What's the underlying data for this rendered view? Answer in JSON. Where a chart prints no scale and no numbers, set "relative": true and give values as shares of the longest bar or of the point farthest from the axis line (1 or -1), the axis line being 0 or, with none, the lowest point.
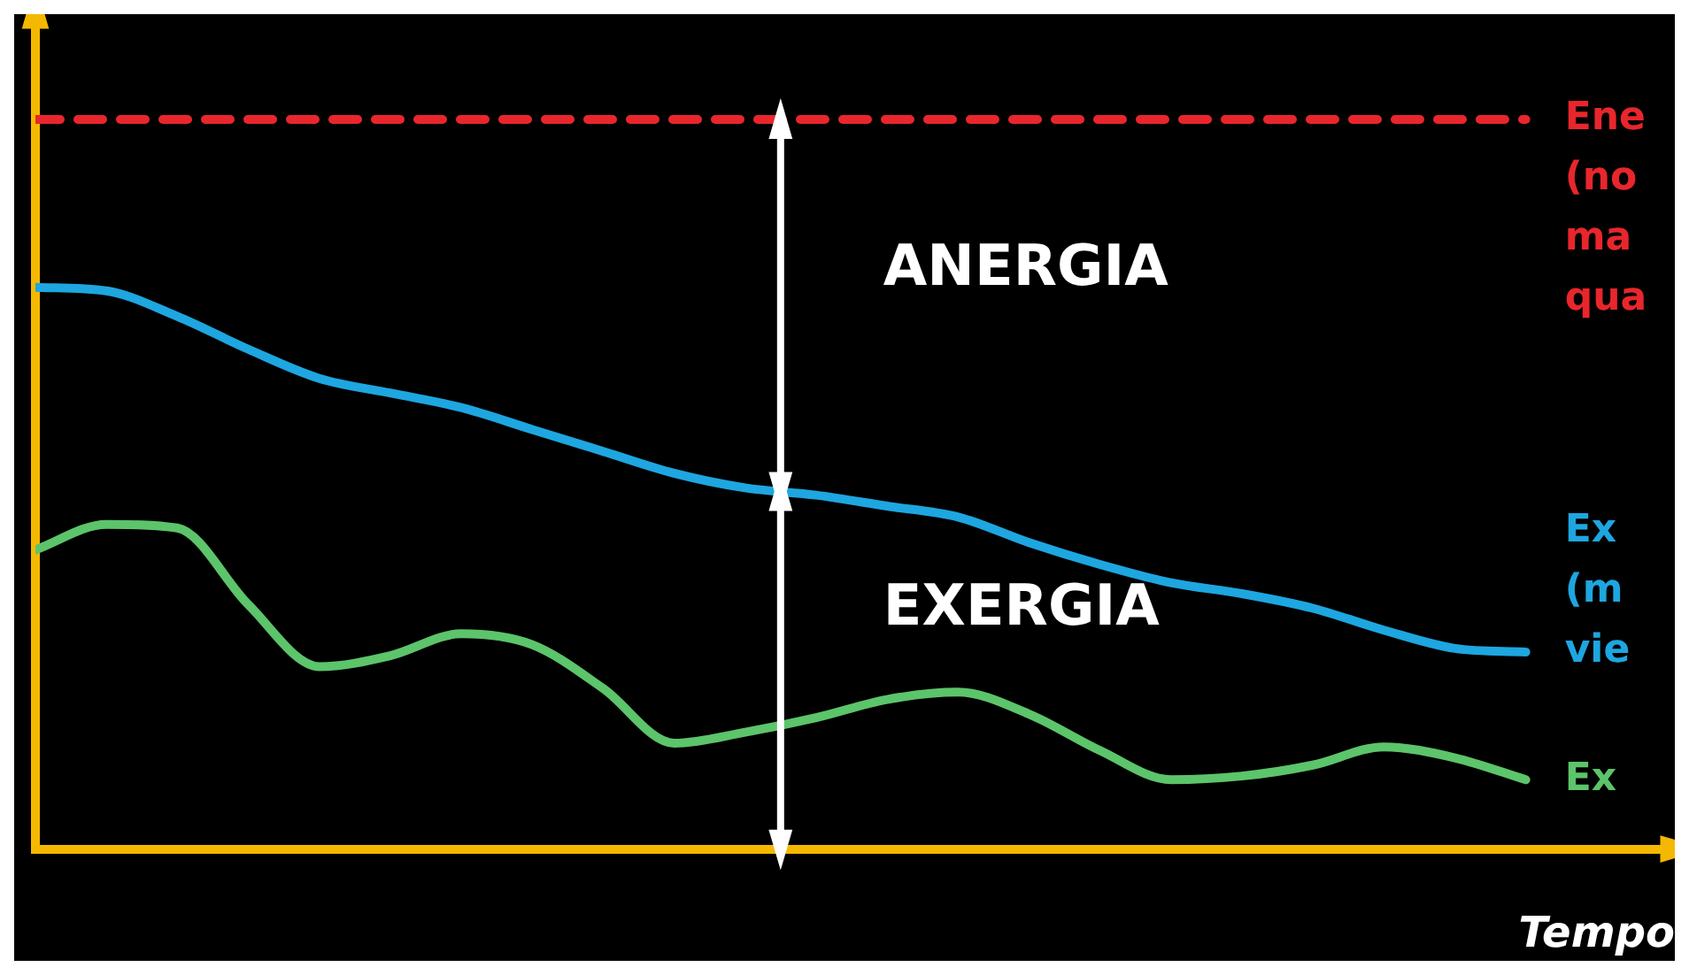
{
  "chart_data": {
    "type": "line",
    "relative": true,
    "xlabel": "Tempo",
    "categories": [
      null,
      null,
      null,
      null,
      null,
      null,
      null,
      null,
      null,
      null,
      null,
      null,
      null,
      null,
      null,
      null,
      null,
      null,
      null,
      null,
      null,
      null
    ],
    "series": [
      {
        "name": "Ene\n(no\nma\nqua",
        "color": "#e8262c",
        "line_style": "dashed",
        "values": [
          1,
          1,
          1,
          1,
          1,
          1,
          1,
          1,
          1,
          1,
          1,
          1,
          1,
          1,
          1,
          1,
          1,
          1,
          1,
          1,
          1,
          1
        ]
      },
      {
        "name": "Ex\n(m\nvie",
        "color": "#1ea6e0",
        "values": [
          0.77,
          0.765,
          0.73,
          0.685,
          0.645,
          0.625,
          0.605,
          0.575,
          0.545,
          0.515,
          0.495,
          0.485,
          0.47,
          0.455,
          0.42,
          0.39,
          0.365,
          0.35,
          0.33,
          0.3,
          0.275,
          0.27
        ]
      },
      {
        "name": "Ex",
        "color": "#5cc46a",
        "values": [
          0.41,
          0.445,
          0.44,
          0.335,
          0.25,
          0.265,
          0.295,
          0.28,
          0.22,
          0.145,
          0.16,
          0.18,
          0.205,
          0.215,
          0.185,
          0.135,
          0.095,
          0.1,
          0.115,
          0.14,
          0.125,
          0.095
        ]
      }
    ],
    "annotations": [
      "ANERGIA",
      "EXERGIA"
    ],
    "legend": "right",
    "marker": "none",
    "line_style": "solid"
  }
}
